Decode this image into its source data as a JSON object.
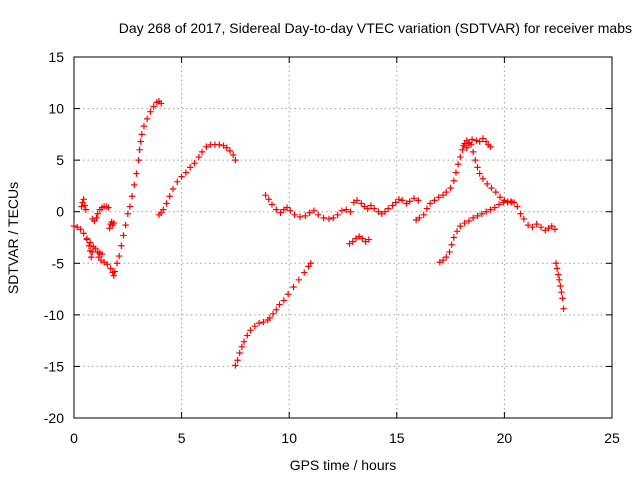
{
  "chart_data": {
    "type": "scatter",
    "title": "Day 268 of 2017, Sidereal Day-to-day VTEC variation (SDTVAR) for receiver mabs",
    "xlabel": "GPS time / hours",
    "ylabel": "SDTVAR / TECUs",
    "xlim": [
      0,
      25
    ],
    "ylim": [
      -20,
      15
    ],
    "xticks": [
      0,
      5,
      10,
      15,
      20,
      25
    ],
    "yticks": [
      -20,
      -15,
      -10,
      -5,
      0,
      5,
      10,
      15
    ],
    "grid": true,
    "marker": "+",
    "color": "#ff0000",
    "series": [
      {
        "name": "s1",
        "points": [
          [
            0.0,
            -1.4
          ],
          [
            0.15,
            -1.5
          ],
          [
            0.3,
            -1.7
          ],
          [
            0.45,
            -2.1
          ],
          [
            0.6,
            -2.6
          ],
          [
            0.75,
            -3.0
          ],
          [
            0.9,
            -3.4
          ],
          [
            1.0,
            -3.6
          ],
          [
            1.1,
            -3.9
          ],
          [
            1.2,
            -4.0
          ],
          [
            1.3,
            -4.1
          ]
        ]
      },
      {
        "name": "s2",
        "points": [
          [
            0.35,
            0.5
          ],
          [
            0.4,
            0.9
          ],
          [
            0.45,
            1.2
          ],
          [
            0.5,
            0.6
          ],
          [
            0.55,
            0.2
          ]
        ]
      },
      {
        "name": "s3",
        "points": [
          [
            0.6,
            -2.7
          ],
          [
            0.7,
            -3.3
          ],
          [
            0.75,
            -3.8
          ],
          [
            0.8,
            -4.4
          ],
          [
            0.85,
            -3.9
          ]
        ]
      },
      {
        "name": "s4",
        "points": [
          [
            0.85,
            -0.7
          ],
          [
            0.95,
            -0.9
          ],
          [
            1.05,
            -0.6
          ],
          [
            1.1,
            -0.2
          ],
          [
            1.2,
            0.2
          ],
          [
            1.3,
            0.4
          ],
          [
            1.4,
            0.5
          ],
          [
            1.5,
            0.5
          ],
          [
            1.6,
            0.4
          ]
        ]
      },
      {
        "name": "s5",
        "points": [
          [
            1.15,
            -4.4
          ],
          [
            1.25,
            -4.7
          ],
          [
            1.4,
            -4.9
          ],
          [
            1.55,
            -5.1
          ],
          [
            1.7,
            -5.5
          ],
          [
            1.8,
            -5.9
          ],
          [
            1.85,
            -6.2
          ],
          [
            1.9,
            -5.8
          ],
          [
            2.0,
            -5.0
          ],
          [
            2.1,
            -4.3
          ],
          [
            2.2,
            -3.3
          ],
          [
            2.3,
            -2.3
          ],
          [
            2.4,
            -1.3
          ],
          [
            2.5,
            -0.2
          ],
          [
            2.6,
            0.5
          ],
          [
            2.7,
            1.5
          ],
          [
            2.8,
            2.6
          ],
          [
            2.9,
            3.7
          ],
          [
            3.0,
            5.0
          ],
          [
            3.05,
            6.0
          ],
          [
            3.1,
            6.8
          ],
          [
            3.15,
            7.5
          ],
          [
            3.25,
            8.3
          ],
          [
            3.4,
            9.0
          ],
          [
            3.55,
            9.7
          ],
          [
            3.7,
            10.2
          ],
          [
            3.85,
            10.6
          ],
          [
            3.95,
            10.7
          ],
          [
            4.05,
            10.5
          ]
        ]
      },
      {
        "name": "s6",
        "points": [
          [
            1.65,
            -1.6
          ],
          [
            1.7,
            -1.2
          ],
          [
            1.75,
            -1.0
          ],
          [
            1.8,
            -1.3
          ],
          [
            1.85,
            -1.1
          ]
        ]
      },
      {
        "name": "s7",
        "points": [
          [
            3.95,
            -0.3
          ],
          [
            4.05,
            -0.1
          ],
          [
            4.15,
            0.2
          ],
          [
            4.3,
            0.8
          ],
          [
            4.45,
            1.5
          ],
          [
            4.6,
            2.2
          ],
          [
            4.8,
            2.9
          ],
          [
            5.0,
            3.4
          ],
          [
            5.2,
            3.8
          ],
          [
            5.4,
            4.3
          ],
          [
            5.6,
            4.7
          ],
          [
            5.8,
            5.3
          ],
          [
            5.95,
            5.8
          ],
          [
            6.15,
            6.3
          ],
          [
            6.35,
            6.5
          ],
          [
            6.55,
            6.5
          ],
          [
            6.75,
            6.5
          ],
          [
            6.95,
            6.4
          ],
          [
            7.1,
            6.2
          ],
          [
            7.25,
            5.9
          ],
          [
            7.4,
            5.5
          ],
          [
            7.5,
            5.0
          ]
        ]
      },
      {
        "name": "s8",
        "points": [
          [
            7.5,
            -14.9
          ],
          [
            7.6,
            -14.4
          ],
          [
            7.7,
            -13.7
          ],
          [
            7.8,
            -13.1
          ],
          [
            7.9,
            -12.6
          ],
          [
            8.05,
            -12.0
          ],
          [
            8.2,
            -11.5
          ],
          [
            8.4,
            -11.1
          ],
          [
            8.6,
            -10.8
          ],
          [
            8.8,
            -10.7
          ],
          [
            9.0,
            -10.5
          ],
          [
            9.1,
            -10.3
          ],
          [
            9.25,
            -9.9
          ],
          [
            9.4,
            -9.5
          ],
          [
            9.55,
            -9.0
          ],
          [
            9.75,
            -8.6
          ],
          [
            9.95,
            -8.0
          ],
          [
            10.2,
            -7.3
          ],
          [
            10.45,
            -6.6
          ],
          [
            10.7,
            -5.9
          ],
          [
            10.9,
            -5.3
          ],
          [
            11.0,
            -5.0
          ]
        ]
      },
      {
        "name": "s9",
        "points": [
          [
            8.9,
            1.6
          ],
          [
            9.05,
            1.2
          ],
          [
            9.2,
            0.7
          ],
          [
            9.4,
            0.2
          ],
          [
            9.6,
            -0.1
          ],
          [
            9.75,
            0.2
          ],
          [
            9.9,
            0.4
          ],
          [
            10.05,
            0.1
          ],
          [
            10.25,
            -0.3
          ],
          [
            10.5,
            -0.5
          ],
          [
            10.75,
            -0.4
          ],
          [
            10.95,
            -0.1
          ],
          [
            11.15,
            0.1
          ],
          [
            11.35,
            -0.3
          ],
          [
            11.6,
            -0.6
          ],
          [
            11.85,
            -0.7
          ],
          [
            12.05,
            -0.6
          ],
          [
            12.25,
            -0.3
          ],
          [
            12.45,
            0.1
          ],
          [
            12.65,
            0.2
          ],
          [
            12.85,
            0.0
          ]
        ]
      },
      {
        "name": "s10",
        "points": [
          [
            12.8,
            -3.1
          ],
          [
            12.95,
            -2.9
          ],
          [
            13.1,
            -2.6
          ],
          [
            13.25,
            -2.4
          ],
          [
            13.4,
            -2.6
          ],
          [
            13.55,
            -2.9
          ],
          [
            13.7,
            -2.7
          ]
        ]
      },
      {
        "name": "s11",
        "points": [
          [
            13.0,
            0.9
          ],
          [
            13.15,
            1.1
          ],
          [
            13.35,
            0.8
          ],
          [
            13.5,
            0.5
          ],
          [
            13.65,
            0.3
          ],
          [
            13.8,
            0.6
          ],
          [
            13.95,
            0.3
          ],
          [
            14.15,
            0.0
          ],
          [
            14.3,
            -0.2
          ],
          [
            14.45,
            0.0
          ],
          [
            14.6,
            0.3
          ],
          [
            14.8,
            0.6
          ],
          [
            14.95,
            0.9
          ],
          [
            15.1,
            1.2
          ],
          [
            15.25,
            1.1
          ],
          [
            15.45,
            0.8
          ],
          [
            15.6,
            1.0
          ],
          [
            15.8,
            1.3
          ],
          [
            16.0,
            1.1
          ]
        ]
      },
      {
        "name": "s12",
        "points": [
          [
            15.9,
            -0.8
          ],
          [
            16.05,
            -0.6
          ],
          [
            16.25,
            -0.3
          ],
          [
            16.4,
            0.3
          ],
          [
            16.55,
            0.8
          ],
          [
            16.75,
            1.1
          ],
          [
            16.95,
            1.4
          ],
          [
            17.15,
            1.6
          ],
          [
            17.3,
            1.9
          ],
          [
            17.5,
            2.3
          ],
          [
            17.65,
            3.0
          ],
          [
            17.75,
            3.8
          ],
          [
            17.85,
            4.6
          ],
          [
            17.95,
            5.3
          ],
          [
            18.05,
            6.0
          ],
          [
            18.15,
            6.6
          ],
          [
            18.25,
            6.9
          ],
          [
            18.35,
            6.7
          ]
        ]
      },
      {
        "name": "s13",
        "points": [
          [
            18.1,
            6.4
          ],
          [
            18.25,
            6.2
          ],
          [
            18.35,
            6.6
          ],
          [
            18.5,
            7.0
          ],
          [
            18.7,
            6.9
          ],
          [
            18.85,
            6.8
          ],
          [
            19.0,
            7.1
          ],
          [
            19.15,
            6.8
          ],
          [
            19.25,
            6.5
          ],
          [
            19.35,
            6.3
          ]
        ]
      },
      {
        "name": "s14",
        "points": [
          [
            18.45,
            6.5
          ],
          [
            18.55,
            5.8
          ],
          [
            18.65,
            5.0
          ],
          [
            18.75,
            4.3
          ],
          [
            18.85,
            3.7
          ],
          [
            19.0,
            3.2
          ],
          [
            19.2,
            2.7
          ],
          [
            19.4,
            2.3
          ],
          [
            19.6,
            1.9
          ],
          [
            19.8,
            1.4
          ],
          [
            20.0,
            1.1
          ],
          [
            20.15,
            0.9
          ],
          [
            20.3,
            1.0
          ],
          [
            20.45,
            0.9
          ],
          [
            20.6,
            0.5
          ],
          [
            20.75,
            -0.2
          ],
          [
            20.9,
            -0.7
          ],
          [
            21.1,
            -1.3
          ],
          [
            21.3,
            -1.5
          ],
          [
            21.5,
            -1.2
          ],
          [
            21.7,
            -1.5
          ],
          [
            21.9,
            -1.8
          ],
          [
            22.05,
            -1.6
          ],
          [
            22.2,
            -1.4
          ],
          [
            22.35,
            -1.7
          ]
        ]
      },
      {
        "name": "s15",
        "points": [
          [
            17.0,
            -4.9
          ],
          [
            17.15,
            -4.7
          ],
          [
            17.3,
            -4.4
          ],
          [
            17.45,
            -3.9
          ],
          [
            17.55,
            -3.2
          ],
          [
            17.65,
            -2.5
          ],
          [
            17.8,
            -1.9
          ],
          [
            17.95,
            -1.4
          ],
          [
            18.15,
            -1.1
          ],
          [
            18.35,
            -0.9
          ],
          [
            18.55,
            -0.6
          ],
          [
            18.75,
            -0.4
          ],
          [
            18.95,
            -0.2
          ],
          [
            19.15,
            0.0
          ],
          [
            19.35,
            0.2
          ],
          [
            19.55,
            0.4
          ],
          [
            19.75,
            0.7
          ],
          [
            19.95,
            0.9
          ],
          [
            20.15,
            1.0
          ],
          [
            20.35,
            0.9
          ]
        ]
      },
      {
        "name": "s16",
        "points": [
          [
            22.4,
            -5.0
          ],
          [
            22.45,
            -5.5
          ],
          [
            22.5,
            -6.1
          ],
          [
            22.55,
            -6.6
          ],
          [
            22.6,
            -7.2
          ],
          [
            22.65,
            -7.8
          ],
          [
            22.7,
            -8.4
          ],
          [
            22.75,
            -9.4
          ]
        ]
      }
    ]
  }
}
